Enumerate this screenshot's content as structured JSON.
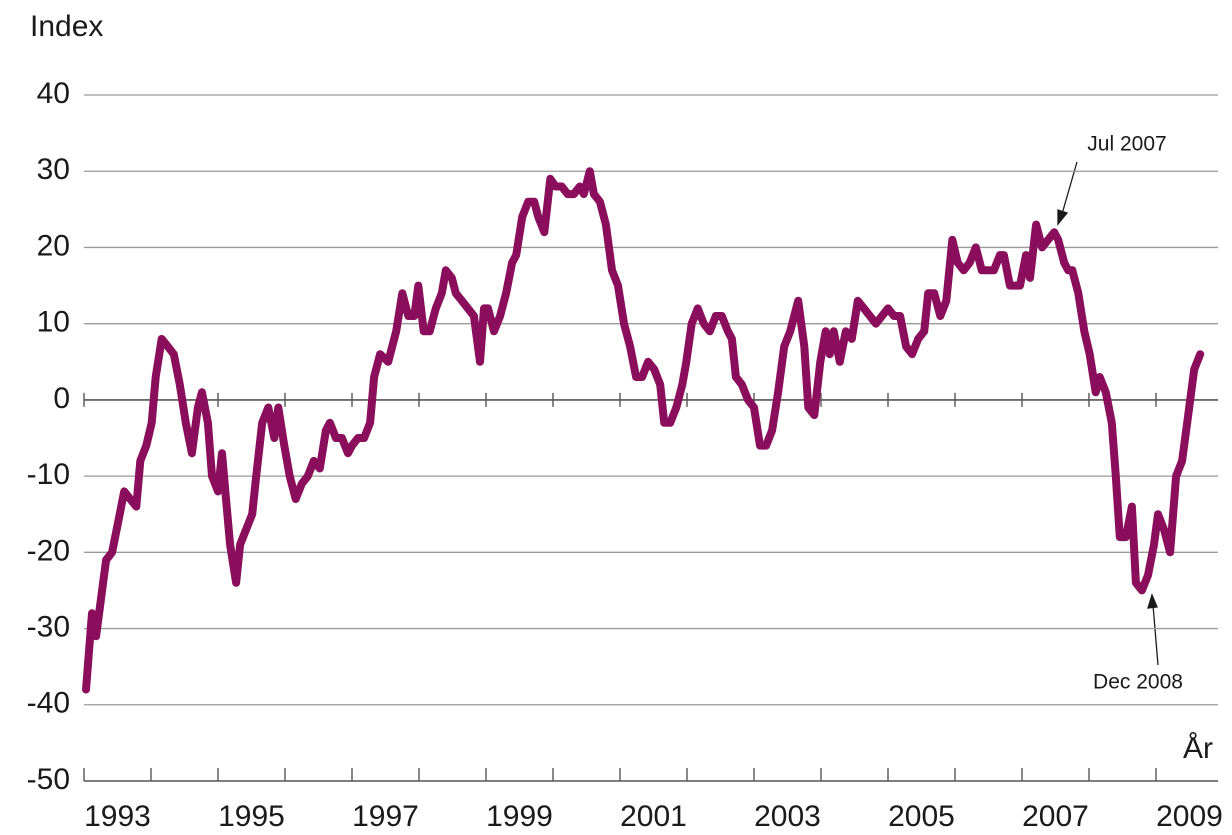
{
  "chart_data": {
    "type": "line",
    "y_label": "Index",
    "x_label": "År",
    "annotations": [
      {
        "text": "Jul 2007",
        "x": 2007.54,
        "y": 21
      },
      {
        "text": "Dec 2008",
        "x": 2008.97,
        "y": -25
      }
    ],
    "xlim": [
      1993,
      2010
    ],
    "xticks": [
      1993,
      1994,
      1995,
      1996,
      1997,
      1998,
      1999,
      2000,
      2001,
      2002,
      2003,
      2004,
      2005,
      2006,
      2007,
      2008,
      2009
    ],
    "xlabels": [
      {
        "value": 1993.5,
        "label": "1993"
      },
      {
        "value": 1995.5,
        "label": "1995"
      },
      {
        "value": 1997.5,
        "label": "1997"
      },
      {
        "value": 1999.5,
        "label": "1999"
      },
      {
        "value": 2001.5,
        "label": "2001"
      },
      {
        "value": 2003.5,
        "label": "2003"
      },
      {
        "value": 2005.5,
        "label": "2005"
      },
      {
        "value": 2007.5,
        "label": "2007"
      },
      {
        "value": 2009.5,
        "label": "2009"
      }
    ],
    "ylim": [
      -50,
      40
    ],
    "yticks": [
      -50,
      -40,
      -30,
      -20,
      -10,
      0,
      10,
      20,
      30,
      40
    ],
    "grid": true,
    "series": [
      {
        "color": "#8a0e5c",
        "x": [
          1993.03,
          1993.12,
          1993.18,
          1993.24,
          1993.33,
          1993.42,
          1993.51,
          1993.6,
          1993.69,
          1993.78,
          1993.84,
          1993.93,
          1994.01,
          1994.07,
          1994.16,
          1994.25,
          1994.34,
          1994.43,
          1994.52,
          1994.61,
          1994.7,
          1994.76,
          1994.85,
          1994.91,
          1995.0,
          1995.06,
          1995.12,
          1995.18,
          1995.27,
          1995.33,
          1995.42,
          1995.51,
          1995.57,
          1995.66,
          1995.75,
          1995.84,
          1995.9,
          1995.99,
          1996.07,
          1996.16,
          1996.25,
          1996.34,
          1996.43,
          1996.52,
          1996.61,
          1996.67,
          1996.76,
          1996.85,
          1996.94,
          1997.0,
          1997.09,
          1997.18,
          1997.27,
          1997.33,
          1997.42,
          1997.54,
          1997.66,
          1997.75,
          1997.84,
          1997.93,
          1997.99,
          1998.07,
          1998.16,
          1998.25,
          1998.34,
          1998.4,
          1998.49,
          1998.55,
          1998.64,
          1998.73,
          1998.82,
          1998.91,
          1998.97,
          1999.03,
          1999.12,
          1999.21,
          1999.3,
          1999.39,
          1999.45,
          1999.54,
          1999.63,
          1999.72,
          1999.78,
          1999.87,
          1999.96,
          2000.04,
          2000.13,
          2000.22,
          2000.31,
          2000.4,
          2000.46,
          2000.55,
          2000.61,
          2000.7,
          2000.79,
          2000.88,
          2000.97,
          2001.06,
          2001.15,
          2001.24,
          2001.33,
          2001.42,
          2001.51,
          2001.6,
          2001.66,
          2001.75,
          2001.84,
          2001.93,
          2001.99,
          2002.07,
          2002.16,
          2002.25,
          2002.34,
          2002.43,
          2002.52,
          2002.61,
          2002.67,
          2002.73,
          2002.82,
          2002.91,
          2003.0,
          2003.09,
          2003.18,
          2003.27,
          2003.36,
          2003.45,
          2003.54,
          2003.66,
          2003.75,
          2003.81,
          2003.9,
          2003.99,
          2004.07,
          2004.13,
          2004.19,
          2004.28,
          2004.37,
          2004.46,
          2004.55,
          2004.64,
          2004.73,
          2004.82,
          2004.91,
          2005.0,
          2005.09,
          2005.18,
          2005.27,
          2005.36,
          2005.45,
          2005.54,
          2005.6,
          2005.69,
          2005.78,
          2005.87,
          2005.96,
          2006.04,
          2006.13,
          2006.22,
          2006.31,
          2006.4,
          2006.49,
          2006.58,
          2006.67,
          2006.73,
          2006.82,
          2006.91,
          2006.97,
          2007.06,
          2007.12,
          2007.21,
          2007.3,
          2007.39,
          2007.48,
          2007.54,
          2007.63,
          2007.69,
          2007.75,
          2007.84,
          2007.93,
          2008.01,
          2008.1,
          2008.16,
          2008.25,
          2008.34,
          2008.4,
          2008.46,
          2008.55,
          2008.64,
          2008.7,
          2008.79,
          2008.88,
          2008.97,
          2009.03,
          2009.12,
          2009.21,
          2009.3,
          2009.39,
          2009.48,
          2009.57,
          2009.66
        ],
        "values": [
          -38,
          -28,
          -31,
          -27,
          -21,
          -20,
          -16,
          -12,
          -13,
          -14,
          -8,
          -6,
          -3,
          3,
          8,
          7,
          6,
          2,
          -3,
          -7,
          -1,
          1,
          -3,
          -10,
          -12,
          -7,
          -13,
          -19,
          -24,
          -19,
          -17,
          -15,
          -10,
          -3,
          -1,
          -5,
          -1,
          -6,
          -10,
          -13,
          -11,
          -10,
          -8,
          -9,
          -4,
          -3,
          -5,
          -5,
          -7,
          -6,
          -5,
          -5,
          -3,
          3,
          6,
          5,
          9,
          14,
          11,
          11,
          15,
          9,
          9,
          12,
          14,
          17,
          16,
          14,
          13,
          12,
          11,
          5,
          12,
          12,
          9,
          11,
          14,
          18,
          19,
          24,
          26,
          26,
          24,
          22,
          29,
          28,
          28,
          27,
          27,
          28,
          27,
          30,
          27,
          26,
          23,
          17,
          15,
          10,
          7,
          3,
          3,
          5,
          4,
          2,
          -3,
          -3,
          -1,
          2,
          5,
          10,
          12,
          10,
          9,
          11,
          11,
          9,
          8,
          3,
          2,
          0,
          -1,
          -6,
          -6,
          -4,
          1,
          7,
          9,
          13,
          7,
          -1,
          -2,
          5,
          9,
          6,
          9,
          5,
          9,
          8,
          13,
          12,
          11,
          10,
          11,
          12,
          11,
          11,
          7,
          6,
          8,
          9,
          14,
          14,
          11,
          13,
          21,
          18,
          17,
          18,
          20,
          17,
          17,
          17,
          19,
          19,
          15,
          15,
          15,
          19,
          16,
          23,
          20,
          21,
          22,
          21,
          18,
          17,
          17,
          14,
          9,
          6,
          1,
          3,
          1,
          -3,
          -10,
          -18,
          -18,
          -14,
          -24,
          -25,
          -23,
          -19,
          -15,
          -17,
          -20,
          -10,
          -8,
          -2,
          4,
          6
        ]
      }
    ]
  }
}
